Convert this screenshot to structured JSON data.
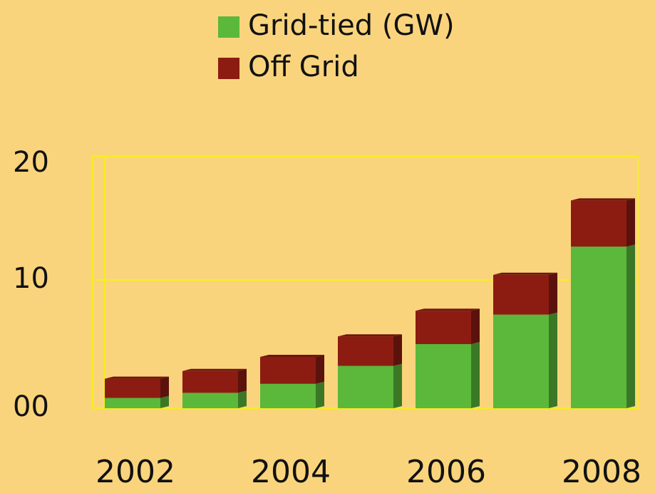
{
  "chart_data": {
    "type": "stacked_bar",
    "categories": [
      "2002",
      null,
      "2004",
      null,
      "2006",
      null,
      "2008"
    ],
    "series": [
      {
        "name": "Grid-tied (GW)",
        "color": "#5bb83a",
        "values": [
          0.8,
          1.2,
          1.9,
          3.3,
          5.0,
          7.3,
          12.6
        ]
      },
      {
        "name": "Off Grid",
        "color": "#8c1c12",
        "values": [
          1.5,
          1.7,
          2.1,
          2.3,
          2.6,
          3.1,
          3.6
        ]
      }
    ],
    "ylim": [
      0,
      20
    ],
    "yticks": [
      {
        "value": 0,
        "label": "00"
      },
      10,
      20
    ],
    "grid": true
  }
}
